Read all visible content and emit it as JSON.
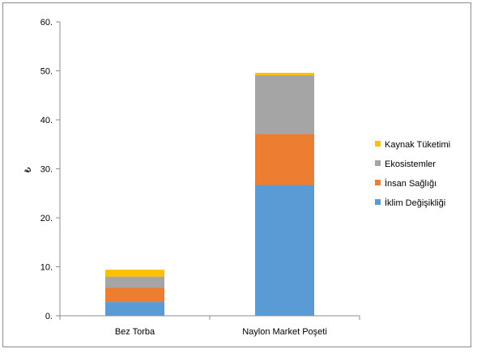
{
  "chart_data": {
    "type": "bar",
    "stacked": true,
    "ylabel": "₺",
    "ylim": [
      0,
      60
    ],
    "yticks": [
      "0.",
      "10.",
      "20.",
      "30.",
      "40.",
      "50.",
      "60."
    ],
    "categories": [
      "Bez Torba",
      "Naylon Market Poşeti"
    ],
    "series": [
      {
        "name": "İklim Değişikliği",
        "color": "#5b9bd5",
        "values": [
          2.8,
          26.7
        ]
      },
      {
        "name": "İnsan Sağlığı",
        "color": "#ed7d31",
        "values": [
          2.9,
          10.4
        ]
      },
      {
        "name": "Ekosistemler",
        "color": "#a5a5a5",
        "values": [
          2.3,
          12.0
        ]
      },
      {
        "name": "Kaynak Tüketimi",
        "color": "#ffc000",
        "values": [
          1.4,
          0.5
        ]
      }
    ],
    "legend_order": [
      "Kaynak Tüketimi",
      "Ekosistemler",
      "İnsan Sağlığı",
      "İklim Değişikliği"
    ],
    "legend_position": "right",
    "grid": false
  }
}
